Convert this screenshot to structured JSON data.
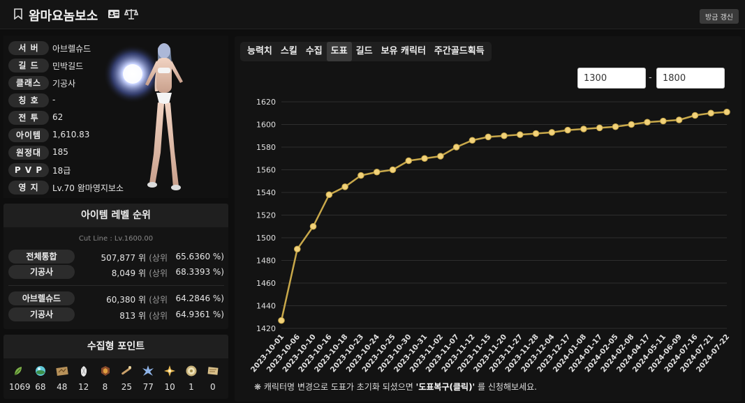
{
  "header": {
    "title": "왐마요놈보소",
    "refresh_label": "방금 갱신"
  },
  "profile": {
    "rows": [
      {
        "label": "서 버",
        "value": "아브렐슈드"
      },
      {
        "label": "길 드",
        "value": "민박길드"
      },
      {
        "label": "클래스",
        "value": "기공사"
      },
      {
        "label": "칭 호",
        "value": "-"
      },
      {
        "label": "전 투",
        "value": "62"
      },
      {
        "label": "아이템",
        "value": "1,610.83"
      },
      {
        "label": "원정대",
        "value": "185"
      },
      {
        "label": "P V P",
        "value": "18급"
      },
      {
        "label": "영 지",
        "value": "Lv.70 왐마영지보소"
      }
    ]
  },
  "ranking": {
    "title": "아이템 레벨 순위",
    "cutline": "Cut Line : Lv.1600.00",
    "sang_label": "(상위",
    "rows": [
      {
        "label": "전체통합",
        "rank": "507,877 위",
        "pct": "65.6360 %)"
      },
      {
        "label": "기공사",
        "rank": "8,049 위",
        "pct": "68.3393 %)"
      },
      {
        "label": "아브렐슈드",
        "rank": "60,380 위",
        "pct": "64.2846 %)"
      },
      {
        "label": "기공사",
        "rank": "813 위",
        "pct": "64.9361 %)"
      }
    ]
  },
  "collection": {
    "title": "수집형 포인트",
    "items": [
      {
        "icon": "seed-icon",
        "count": "1069"
      },
      {
        "icon": "island-heart-icon",
        "count": "68"
      },
      {
        "icon": "great-art-icon",
        "count": "48"
      },
      {
        "icon": "mokoko-icon",
        "count": "12"
      },
      {
        "icon": "adventure-tome-icon",
        "count": "8"
      },
      {
        "icon": "voyage-icon",
        "count": "25"
      },
      {
        "icon": "world-tree-leaf-icon",
        "count": "77"
      },
      {
        "icon": "ignea-token-icon",
        "count": "10"
      },
      {
        "icon": "orpheus-star-icon",
        "count": "1"
      },
      {
        "icon": "gift-token-icon",
        "count": "0"
      }
    ]
  },
  "tabs": [
    {
      "label": "능력치",
      "active": false
    },
    {
      "label": "스킬",
      "active": false
    },
    {
      "label": "수집",
      "active": false
    },
    {
      "label": "도표",
      "active": true
    },
    {
      "label": "길드",
      "active": false
    },
    {
      "label": "보유 캐릭터",
      "active": false
    },
    {
      "label": "주간골드획득",
      "active": false
    }
  ],
  "range": {
    "min": "1300",
    "max": "1800",
    "separator": "-"
  },
  "note": {
    "prefix": "❋ 캐릭터명 변경으로 도표가 초기화 되셨으면 ",
    "bold": "'도표복구(클릭)'",
    "suffix": " 를 신청해보세요."
  },
  "chart_data": {
    "type": "line",
    "x": [
      "2023-10-01",
      "2023-10-06",
      "2023-10-10",
      "2023-10-16",
      "2023-10-18",
      "2023-10-23",
      "2023-10-24",
      "2023-10-25",
      "2023-10-30",
      "2023-10-31",
      "2023-11-02",
      "2023-11-07",
      "2023-11-12",
      "2023-11-15",
      "2023-11-20",
      "2023-11-27",
      "2023-11-28",
      "2023-12-04",
      "2023-12-17",
      "2024-01-08",
      "2024-01-17",
      "2024-02-05",
      "2024-02-08",
      "2024-04-17",
      "2024-05-11",
      "2024-06-09",
      "2024-07-16",
      "2024-07-21",
      "2024-07-22"
    ],
    "y": [
      1427,
      1490,
      1510,
      1538,
      1545,
      1555,
      1558,
      1560,
      1568,
      1570,
      1572,
      1580,
      1586,
      1589,
      1590,
      1591,
      1592,
      1593,
      1595,
      1596,
      1597,
      1598,
      1600,
      1602,
      1603,
      1604,
      1608,
      1610,
      1611
    ],
    "ylim": [
      1420,
      1620
    ],
    "yticks": [
      1420,
      1440,
      1460,
      1480,
      1500,
      1520,
      1540,
      1560,
      1580,
      1600,
      1620
    ],
    "grid": true,
    "colors": {
      "line": "#c8a84a",
      "point": "#f2d27a",
      "grid": "#2e2e2e"
    }
  }
}
